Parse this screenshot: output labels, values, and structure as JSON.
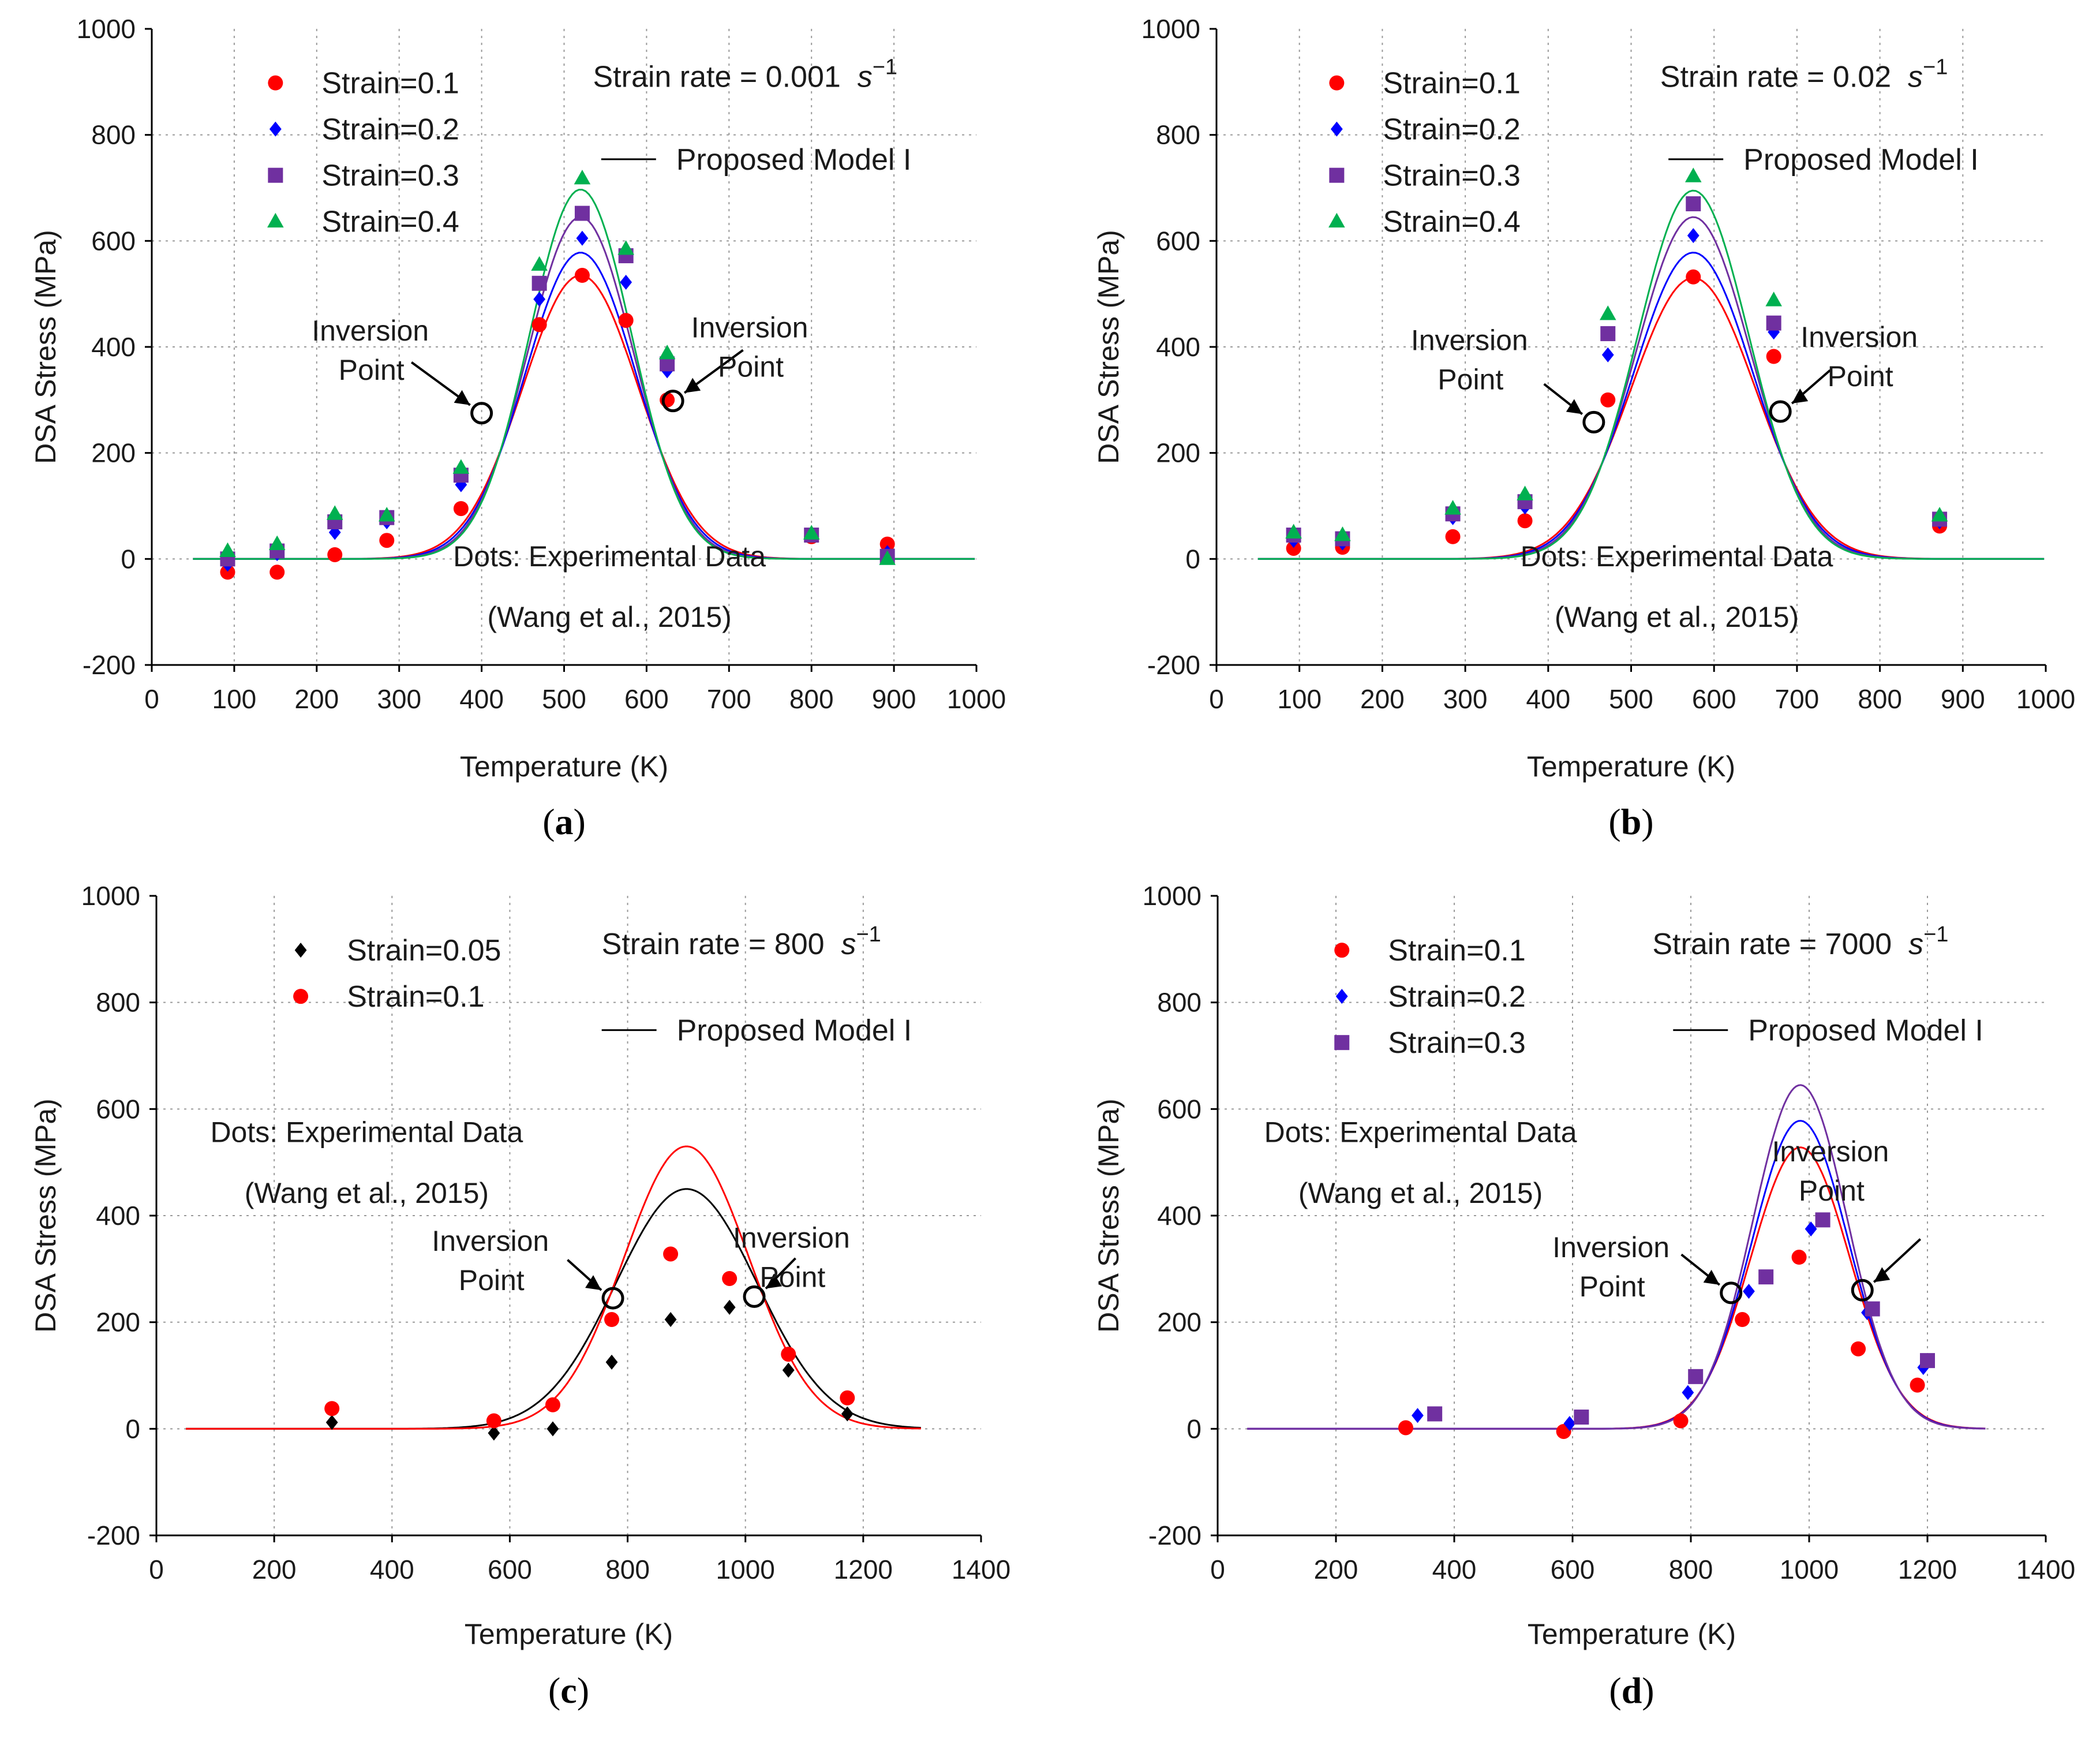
{
  "figure": {
    "aria": "Four-panel figure of DSA stress versus temperature"
  },
  "chart_data": [
    {
      "type": "scatter",
      "panel_label": "a",
      "xlabel": "Temperature (K)",
      "ylabel": "DSA Stress (MPa)",
      "xlim": [
        0,
        1000
      ],
      "ylim": [
        -200,
        1000
      ],
      "xticks": [
        0,
        100,
        200,
        300,
        400,
        500,
        600,
        700,
        800,
        900,
        1000
      ],
      "yticks": [
        -200,
        0,
        200,
        400,
        600,
        800,
        1000
      ],
      "grid": true,
      "strain_rate_text": "Strain rate = 0.001",
      "rate_unit": "s",
      "rate_exp": "−1",
      "model_label": "Proposed Model I",
      "dots_label": "Dots: Experimental Data",
      "citation": "(Wang et al., 2015)",
      "inversion_labels": [
        {
          "line1": "Inversion",
          "line2": "Point",
          "x": 400,
          "y": 275,
          "side": "left"
        },
        {
          "line1": "Inversion",
          "line2": "Point",
          "x": 632,
          "y": 298,
          "side": "right"
        }
      ],
      "series": [
        {
          "name": "Strain=0.1",
          "color": "#ff0000",
          "marker": "circle",
          "x": [
            92,
            152,
            222,
            285,
            375,
            470,
            522,
            575,
            625,
            800,
            892
          ],
          "y": [
            -25,
            -25,
            8,
            35,
            95,
            442,
            535,
            450,
            300,
            42,
            28
          ],
          "model": {
            "peak": 535,
            "mu": 520,
            "sigma": 70,
            "start": 50,
            "end": 1000
          }
        },
        {
          "name": "Strain=0.2",
          "color": "#0000ff",
          "marker": "diamond",
          "x": [
            92,
            152,
            222,
            285,
            375,
            470,
            522,
            575,
            625,
            800,
            892
          ],
          "y": [
            -10,
            10,
            50,
            70,
            140,
            490,
            605,
            522,
            355,
            45,
            12
          ],
          "model": {
            "peak": 578,
            "mu": 520,
            "sigma": 67,
            "start": 50,
            "end": 1000
          }
        },
        {
          "name": "Strain=0.3",
          "color": "#7030a0",
          "marker": "square",
          "x": [
            92,
            152,
            222,
            285,
            375,
            470,
            522,
            575,
            625,
            800,
            892
          ],
          "y": [
            0,
            15,
            70,
            78,
            158,
            520,
            652,
            572,
            368,
            45,
            5
          ],
          "model": {
            "peak": 645,
            "mu": 520,
            "sigma": 64,
            "start": 50,
            "end": 1000
          }
        },
        {
          "name": "Strain=0.4",
          "color": "#00b050",
          "marker": "triangle",
          "x": [
            92,
            152,
            222,
            285,
            375,
            470,
            522,
            575,
            625,
            800,
            892
          ],
          "y": [
            15,
            28,
            85,
            82,
            172,
            555,
            718,
            585,
            388,
            48,
            0
          ],
          "model": {
            "peak": 697,
            "mu": 520,
            "sigma": 62,
            "start": 50,
            "end": 1000
          }
        }
      ]
    },
    {
      "type": "scatter",
      "panel_label": "b",
      "xlabel": "Temperature (K)",
      "ylabel": "DSA Stress (MPa)",
      "xlim": [
        0,
        1000
      ],
      "ylim": [
        -200,
        1000
      ],
      "xticks": [
        0,
        100,
        200,
        300,
        400,
        500,
        600,
        700,
        800,
        900,
        1000
      ],
      "yticks": [
        -200,
        0,
        200,
        400,
        600,
        800,
        1000
      ],
      "grid": true,
      "strain_rate_text": "Strain rate = 0.02",
      "rate_unit": "s",
      "rate_exp": "−1",
      "model_label": "Proposed Model I",
      "dots_label": "Dots: Experimental Data",
      "citation": "(Wang et al., 2015)",
      "inversion_labels": [
        {
          "line1": "Inversion",
          "line2": "Point",
          "x": 455,
          "y": 258,
          "side": "left"
        },
        {
          "line1": "Inversion",
          "line2": "Point",
          "x": 680,
          "y": 278,
          "side": "right"
        }
      ],
      "series": [
        {
          "name": "Strain=0.1",
          "color": "#ff0000",
          "marker": "circle",
          "x": [
            93,
            152,
            285,
            372,
            472,
            575,
            672,
            872
          ],
          "y": [
            20,
            22,
            42,
            72,
            300,
            532,
            382,
            62
          ],
          "model": {
            "peak": 530,
            "mu": 575,
            "sigma": 75,
            "start": 50,
            "end": 1000
          }
        },
        {
          "name": "Strain=0.2",
          "color": "#0000ff",
          "marker": "diamond",
          "x": [
            93,
            152,
            285,
            372,
            472,
            575,
            672,
            872
          ],
          "y": [
            35,
            30,
            78,
            98,
            385,
            610,
            428,
            70
          ],
          "model": {
            "peak": 578,
            "mu": 575,
            "sigma": 72,
            "start": 50,
            "end": 1000
          }
        },
        {
          "name": "Strain=0.3",
          "color": "#7030a0",
          "marker": "square",
          "x": [
            93,
            152,
            285,
            372,
            472,
            575,
            672,
            872
          ],
          "y": [
            45,
            38,
            85,
            108,
            425,
            670,
            445,
            75
          ],
          "model": {
            "peak": 645,
            "mu": 575,
            "sigma": 69,
            "start": 50,
            "end": 1000
          }
        },
        {
          "name": "Strain=0.4",
          "color": "#00b050",
          "marker": "triangle",
          "x": [
            93,
            152,
            285,
            372,
            472,
            575,
            672,
            872
          ],
          "y": [
            50,
            45,
            95,
            122,
            462,
            722,
            488,
            82
          ],
          "model": {
            "peak": 695,
            "mu": 575,
            "sigma": 67,
            "start": 50,
            "end": 1000
          }
        }
      ]
    },
    {
      "type": "scatter",
      "panel_label": "c",
      "xlabel": "Temperature (K)",
      "ylabel": "DSA Stress (MPa)",
      "xlim": [
        0,
        1400
      ],
      "ylim": [
        -200,
        1000
      ],
      "xticks": [
        0,
        200,
        400,
        600,
        800,
        1000,
        1200,
        1400
      ],
      "yticks": [
        -200,
        0,
        200,
        400,
        600,
        800,
        1000
      ],
      "grid": true,
      "strain_rate_text": "Strain rate = 800",
      "rate_unit": "s",
      "rate_exp": "−1",
      "model_label": "Proposed Model I",
      "dots_label": "Dots: Experimental Data",
      "citation": "(Wang et al., 2015)",
      "inversion_labels": [
        {
          "line1": "Inversion",
          "line2": "Point",
          "x": 775,
          "y": 245,
          "side": "left"
        },
        {
          "line1": "Inversion",
          "line2": "Point",
          "x": 1015,
          "y": 248,
          "side": "right"
        }
      ],
      "series": [
        {
          "name": "Strain=0.05",
          "color": "#000000",
          "marker": "diamond",
          "x": [
            298,
            573,
            673,
            773,
            873,
            973,
            1073,
            1173
          ],
          "y": [
            12,
            -8,
            0,
            125,
            205,
            228,
            110,
            28
          ],
          "model": {
            "peak": 450,
            "mu": 900,
            "sigma": 120,
            "start": 50,
            "end": 1300
          }
        },
        {
          "name": "Strain=0.1",
          "color": "#ff0000",
          "marker": "circle",
          "x": [
            298,
            573,
            673,
            773,
            873,
            973,
            1073,
            1173
          ],
          "y": [
            38,
            15,
            45,
            205,
            328,
            282,
            140,
            58
          ],
          "model": {
            "peak": 530,
            "mu": 900,
            "sigma": 106,
            "start": 50,
            "end": 1300
          }
        }
      ]
    },
    {
      "type": "scatter",
      "panel_label": "d",
      "xlabel": "Temperature (K)",
      "ylabel": "DSA Stress (MPa)",
      "xlim": [
        0,
        1400
      ],
      "ylim": [
        -200,
        1000
      ],
      "xticks": [
        0,
        200,
        400,
        600,
        800,
        1000,
        1200,
        1400
      ],
      "yticks": [
        -200,
        0,
        200,
        400,
        600,
        800,
        1000
      ],
      "grid": true,
      "strain_rate_text": "Strain rate = 7000",
      "rate_unit": "s",
      "rate_exp": "−1",
      "model_label": "Proposed Model I",
      "dots_label": "Dots: Experimental Data",
      "citation": "(Wang et al., 2015)",
      "inversion_labels": [
        {
          "line1": "Inversion",
          "line2": "Point",
          "x": 868,
          "y": 255,
          "side": "left"
        },
        {
          "line1": "Inversion",
          "line2": "Point",
          "x": 1090,
          "y": 260,
          "side": "right"
        }
      ],
      "series": [
        {
          "name": "Strain=0.1",
          "color": "#ff0000",
          "marker": "circle",
          "x": [
            318,
            585,
            783,
            887,
            983,
            1083,
            1183
          ],
          "y": [
            2,
            -5,
            15,
            205,
            322,
            150,
            82
          ],
          "model": {
            "peak": 528,
            "mu": 985,
            "sigma": 84,
            "start": 50,
            "end": 1300
          }
        },
        {
          "name": "Strain=0.2",
          "color": "#0000ff",
          "marker": "diamond",
          "x": [
            338,
            595,
            795,
            898,
            1003,
            1098,
            1193
          ],
          "y": [
            25,
            10,
            68,
            258,
            375,
            218,
            115
          ],
          "model": {
            "peak": 578,
            "mu": 985,
            "sigma": 82,
            "start": 50,
            "end": 1300
          }
        },
        {
          "name": "Strain=0.3",
          "color": "#7030a0",
          "marker": "square",
          "x": [
            367,
            615,
            808,
            927,
            1023,
            1107,
            1200
          ],
          "y": [
            28,
            22,
            98,
            285,
            392,
            225,
            128
          ],
          "model": {
            "peak": 645,
            "mu": 985,
            "sigma": 80,
            "start": 50,
            "end": 1300
          }
        }
      ]
    }
  ]
}
